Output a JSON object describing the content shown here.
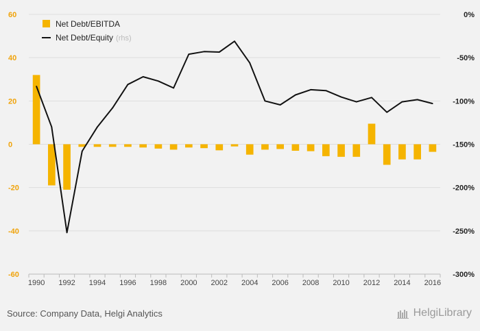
{
  "chart_data": {
    "type": "bar+line",
    "categories": [
      "1990",
      "1991",
      "1992",
      "1993",
      "1994",
      "1995",
      "1996",
      "1997",
      "1998",
      "1999",
      "2000",
      "2001",
      "2002",
      "2003",
      "2004",
      "2005",
      "2006",
      "2007",
      "2008",
      "2009",
      "2010",
      "2011",
      "2012",
      "2013",
      "2014",
      "2015",
      "2016"
    ],
    "x_tick_labels": [
      "1990",
      "1992",
      "1994",
      "1996",
      "1998",
      "2000",
      "2002",
      "2004",
      "2006",
      "2008",
      "2010",
      "2012",
      "2014",
      "2016"
    ],
    "series": [
      {
        "name": "Net Debt/EBITDA",
        "type": "bar",
        "axis": "left",
        "color": "#f5b400",
        "values": [
          32,
          -19,
          -21,
          -1.2,
          -1.2,
          -1.2,
          -1.2,
          -1.5,
          -2,
          -2.5,
          -1.5,
          -1.8,
          -2.8,
          -1,
          -4.8,
          -2.5,
          -2.2,
          -3,
          -3.2,
          -5.5,
          -5.8,
          -5.8,
          9.5,
          -9.5,
          -7,
          -7,
          -3.5
        ]
      },
      {
        "name": "Net Debt/Equity",
        "name_suffix": "(rhs)",
        "type": "line",
        "axis": "right",
        "color": "#111111",
        "values": [
          -83,
          -130,
          -252,
          -158,
          -130,
          -108,
          -81,
          -72,
          -77,
          -85,
          -46,
          -43,
          -43.5,
          -31,
          -56,
          -100,
          -104.5,
          -93,
          -87,
          -88,
          -95.5,
          -101,
          -96,
          -113,
          -101,
          -98.5,
          -103
        ]
      }
    ],
    "y_left": {
      "min": -60,
      "max": 60,
      "ticks": [
        "60",
        "40",
        "20",
        "0",
        "-20",
        "-40",
        "-60"
      ],
      "tick_values": [
        60,
        40,
        20,
        0,
        -20,
        -40,
        -60
      ]
    },
    "y_right": {
      "min": -300,
      "max": 0,
      "ticks": [
        "0%",
        "-50%",
        "-100%",
        "-150%",
        "-200%",
        "-250%",
        "-300%"
      ],
      "tick_values": [
        0,
        -50,
        -100,
        -150,
        -200,
        -250,
        -300
      ]
    },
    "grid": true,
    "legend_position": "top-left"
  },
  "footer": {
    "source": "Source: Company Data, Helgi Analytics",
    "brand": "HelgiLibrary"
  },
  "colors": {
    "left_axis": "#f0a30a",
    "grid": "#dddddd",
    "background": "#f2f2f2"
  }
}
